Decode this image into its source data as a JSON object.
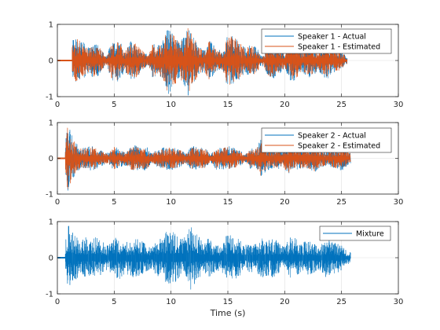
{
  "chart_data": [
    {
      "type": "line",
      "title": "",
      "xlabel": "",
      "ylabel": "",
      "xlim": [
        0,
        30
      ],
      "ylim": [
        -1,
        1
      ],
      "xticks": [
        0,
        5,
        10,
        15,
        20,
        25,
        30
      ],
      "yticks": [
        -1,
        0,
        1
      ],
      "grid": true,
      "legend_position": "top-right",
      "series": [
        {
          "name": "Speaker 1 - Actual",
          "color": "#0072BD",
          "signal_start": 1.3,
          "signal_end": 25.5,
          "peak_amplitude": 1.0
        },
        {
          "name": "Speaker 1 - Estimated",
          "color": "#D95319",
          "signal_start": 1.3,
          "signal_end": 25.5,
          "peak_amplitude": 1.0
        }
      ],
      "envelope": [
        [
          1.3,
          0.6
        ],
        [
          1.8,
          0.65
        ],
        [
          2.3,
          0.5
        ],
        [
          2.8,
          0.35
        ],
        [
          3.2,
          0.5
        ],
        [
          3.7,
          0.4
        ],
        [
          4.3,
          0.1
        ],
        [
          4.8,
          0.55
        ],
        [
          5.4,
          0.6
        ],
        [
          5.9,
          0.3
        ],
        [
          6.5,
          0.55
        ],
        [
          7.0,
          0.5
        ],
        [
          7.6,
          0.25
        ],
        [
          8.0,
          0.15
        ],
        [
          8.4,
          0.5
        ],
        [
          8.8,
          0.4
        ],
        [
          9.3,
          0.55
        ],
        [
          9.7,
          0.95
        ],
        [
          10.2,
          0.8
        ],
        [
          10.7,
          0.55
        ],
        [
          11.2,
          0.7
        ],
        [
          11.5,
          1.0
        ],
        [
          12.0,
          0.7
        ],
        [
          12.5,
          0.4
        ],
        [
          12.9,
          0.3
        ],
        [
          13.4,
          0.6
        ],
        [
          14.0,
          0.3
        ],
        [
          14.5,
          0.3
        ],
        [
          15.0,
          0.75
        ],
        [
          15.5,
          0.7
        ],
        [
          16.0,
          0.55
        ],
        [
          16.5,
          0.35
        ],
        [
          17.0,
          0.45
        ],
        [
          17.5,
          0.4
        ],
        [
          18.0,
          0.1
        ],
        [
          18.5,
          0.45
        ],
        [
          19.0,
          0.55
        ],
        [
          19.5,
          0.4
        ],
        [
          20.0,
          0.2
        ],
        [
          20.5,
          0.6
        ],
        [
          21.0,
          0.55
        ],
        [
          21.5,
          0.3
        ],
        [
          22.0,
          0.5
        ],
        [
          22.5,
          0.4
        ],
        [
          23.0,
          0.3
        ],
        [
          23.6,
          0.55
        ],
        [
          24.2,
          0.4
        ],
        [
          24.8,
          0.3
        ],
        [
          25.5,
          0.1
        ]
      ]
    },
    {
      "type": "line",
      "title": "",
      "xlabel": "",
      "ylabel": "",
      "xlim": [
        0,
        30
      ],
      "ylim": [
        -1,
        1
      ],
      "xticks": [
        0,
        5,
        10,
        15,
        20,
        25,
        30
      ],
      "yticks": [
        -1,
        0,
        1
      ],
      "grid": true,
      "legend_position": "top-right",
      "series": [
        {
          "name": "Speaker 2 - Actual",
          "color": "#0072BD",
          "signal_start": 0.7,
          "signal_end": 25.8,
          "peak_amplitude": 1.0
        },
        {
          "name": "Speaker 2 - Estimated",
          "color": "#D95319",
          "signal_start": 0.7,
          "signal_end": 25.8,
          "peak_amplitude": 1.0
        }
      ],
      "envelope": [
        [
          0.7,
          0.6
        ],
        [
          0.9,
          1.0
        ],
        [
          1.2,
          0.7
        ],
        [
          1.6,
          0.45
        ],
        [
          2.0,
          0.3
        ],
        [
          2.5,
          0.3
        ],
        [
          3.0,
          0.35
        ],
        [
          3.5,
          0.3
        ],
        [
          4.0,
          0.2
        ],
        [
          4.5,
          0.15
        ],
        [
          5.0,
          0.35
        ],
        [
          5.5,
          0.25
        ],
        [
          6.0,
          0.2
        ],
        [
          6.7,
          0.4
        ],
        [
          7.2,
          0.3
        ],
        [
          7.8,
          0.35
        ],
        [
          8.3,
          0.15
        ],
        [
          8.8,
          0.25
        ],
        [
          9.3,
          0.3
        ],
        [
          9.8,
          0.35
        ],
        [
          10.3,
          0.3
        ],
        [
          10.8,
          0.25
        ],
        [
          11.3,
          0.15
        ],
        [
          11.8,
          0.35
        ],
        [
          12.4,
          0.3
        ],
        [
          13.0,
          0.3
        ],
        [
          13.5,
          0.1
        ],
        [
          14.0,
          0.35
        ],
        [
          14.5,
          0.3
        ],
        [
          15.0,
          0.35
        ],
        [
          15.5,
          0.3
        ],
        [
          16.0,
          0.25
        ],
        [
          16.5,
          0.1
        ],
        [
          17.0,
          0.3
        ],
        [
          17.4,
          0.25
        ],
        [
          17.9,
          0.55
        ],
        [
          18.3,
          0.4
        ],
        [
          18.8,
          0.3
        ],
        [
          19.3,
          0.35
        ],
        [
          19.8,
          0.25
        ],
        [
          20.3,
          0.45
        ],
        [
          20.8,
          0.3
        ],
        [
          21.4,
          0.35
        ],
        [
          22.0,
          0.3
        ],
        [
          22.6,
          0.4
        ],
        [
          23.2,
          0.25
        ],
        [
          23.8,
          0.2
        ],
        [
          24.4,
          0.3
        ],
        [
          25.0,
          0.35
        ],
        [
          25.8,
          0.15
        ]
      ]
    },
    {
      "type": "line",
      "title": "",
      "xlabel": "Time (s)",
      "ylabel": "",
      "xlim": [
        0,
        30
      ],
      "ylim": [
        -1,
        1
      ],
      "xticks": [
        0,
        5,
        10,
        15,
        20,
        25,
        30
      ],
      "yticks": [
        -1,
        0,
        1
      ],
      "grid": true,
      "legend_position": "top-right",
      "series": [
        {
          "name": "Mixture",
          "color": "#0072BD",
          "signal_start": 0.7,
          "signal_end": 25.8,
          "peak_amplitude": 1.0
        }
      ],
      "envelope": [
        [
          0.7,
          0.65
        ],
        [
          0.9,
          1.0
        ],
        [
          1.2,
          0.75
        ],
        [
          1.6,
          0.65
        ],
        [
          2.0,
          0.55
        ],
        [
          2.5,
          0.6
        ],
        [
          3.0,
          0.5
        ],
        [
          3.5,
          0.6
        ],
        [
          4.0,
          0.45
        ],
        [
          4.5,
          0.35
        ],
        [
          5.0,
          0.55
        ],
        [
          5.5,
          0.6
        ],
        [
          6.0,
          0.45
        ],
        [
          6.6,
          0.55
        ],
        [
          7.2,
          0.5
        ],
        [
          7.8,
          0.4
        ],
        [
          8.3,
          0.3
        ],
        [
          8.8,
          0.55
        ],
        [
          9.3,
          0.6
        ],
        [
          9.8,
          0.8
        ],
        [
          10.3,
          0.7
        ],
        [
          10.8,
          0.55
        ],
        [
          11.3,
          0.6
        ],
        [
          11.8,
          1.0
        ],
        [
          12.3,
          0.65
        ],
        [
          12.8,
          0.45
        ],
        [
          13.3,
          0.55
        ],
        [
          13.9,
          0.4
        ],
        [
          14.4,
          0.35
        ],
        [
          15.0,
          0.7
        ],
        [
          15.5,
          0.6
        ],
        [
          16.0,
          0.55
        ],
        [
          16.5,
          0.35
        ],
        [
          17.0,
          0.45
        ],
        [
          17.5,
          0.4
        ],
        [
          18.0,
          0.55
        ],
        [
          18.5,
          0.5
        ],
        [
          19.0,
          0.55
        ],
        [
          19.5,
          0.45
        ],
        [
          20.0,
          0.3
        ],
        [
          20.5,
          0.6
        ],
        [
          21.0,
          0.55
        ],
        [
          21.5,
          0.4
        ],
        [
          22.0,
          0.5
        ],
        [
          22.5,
          0.45
        ],
        [
          23.0,
          0.35
        ],
        [
          23.6,
          0.55
        ],
        [
          24.2,
          0.45
        ],
        [
          24.8,
          0.4
        ],
        [
          25.8,
          0.15
        ]
      ]
    }
  ]
}
